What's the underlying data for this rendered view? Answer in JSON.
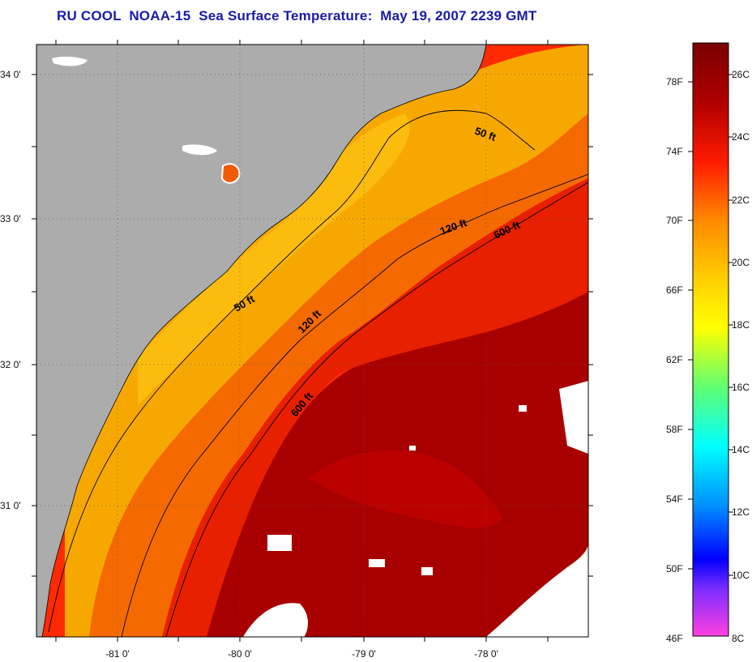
{
  "title": "RU COOL  NOAA-15  Sea Surface Temperature:  May 19, 2007 2239 GMT",
  "map": {
    "lat_labels": [
      "34 0'",
      "33 0'",
      "32 0'",
      "31 0'"
    ],
    "lon_labels": [
      "-81 0'",
      "-80 0'",
      "-79 0'",
      "-78 0'"
    ],
    "contours": [
      {
        "label": "50 ft"
      },
      {
        "label": "120 ft"
      },
      {
        "label": "600 ft"
      },
      {
        "label": "50 ft"
      },
      {
        "label": "120 ft"
      },
      {
        "label": "600 ft"
      }
    ],
    "colors": {
      "land": "#acacac",
      "cloud": "#ffffff",
      "warm_dark": "#9e0000",
      "warm": "#e81c00",
      "orange": "#f57a00",
      "yellow_orange": "#f7b300"
    }
  },
  "colorbar": {
    "f_labels": [
      "78F",
      "74F",
      "70F",
      "66F",
      "62F",
      "58F",
      "54F",
      "50F",
      "46F"
    ],
    "c_labels": [
      "26C",
      "24C",
      "22C",
      "20C",
      "18C",
      "16C",
      "14C",
      "12C",
      "10C",
      "8C"
    ],
    "stops": [
      "#7a0000",
      "#c80000",
      "#ff3000",
      "#ff9000",
      "#ffff00",
      "#60ff60",
      "#00ffff",
      "#0080ff",
      "#0000ff",
      "#8000ff",
      "#ff40ff"
    ]
  }
}
